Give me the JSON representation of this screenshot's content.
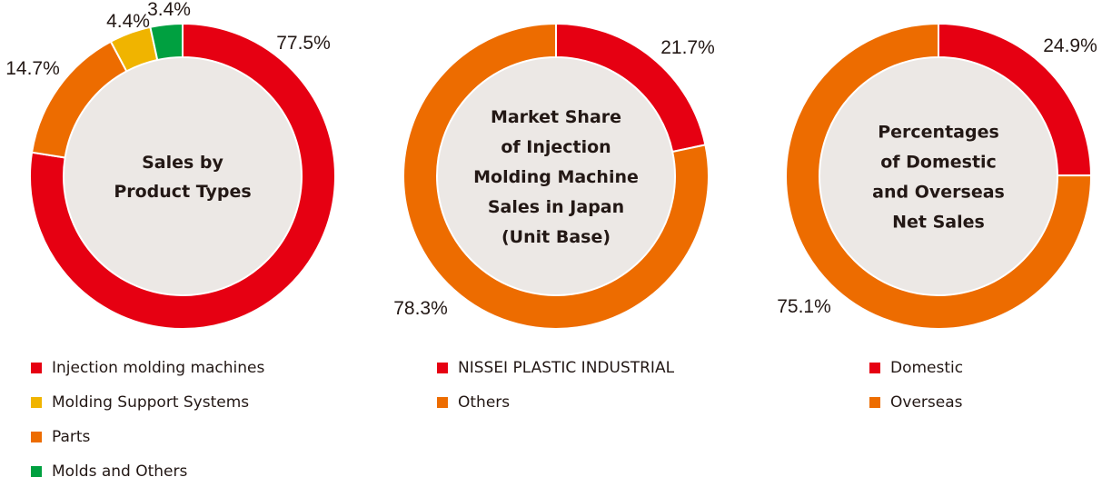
{
  "chart_data": [
    {
      "type": "pie",
      "title": "Sales by Product Types",
      "center_lines": [
        "Sales by",
        "Product Types"
      ],
      "labels": [
        "Injection molding machines",
        "Molding Support Systems",
        "Parts",
        "Molds and Others"
      ],
      "values": [
        77.5,
        4.4,
        14.7,
        3.4
      ],
      "value_labels": [
        "77.5%",
        "4.4%",
        "14.7%",
        "3.4%"
      ],
      "colors": [
        "#e60012",
        "#f0b400",
        "#ed6c00",
        "#00a040"
      ],
      "draw_order": [
        0,
        2,
        1,
        3
      ],
      "legend_order": [
        0,
        1,
        2,
        3
      ]
    },
    {
      "type": "pie",
      "title": "Market Share of Injection Molding Machine Sales in Japan (Unit Base)",
      "center_lines": [
        "Market Share",
        "of Injection",
        "Molding Machine",
        "Sales in Japan",
        "(Unit Base)"
      ],
      "labels": [
        "NISSEI PLASTIC INDUSTRIAL",
        "Others"
      ],
      "values": [
        21.7,
        78.3
      ],
      "value_labels": [
        "21.7%",
        "78.3%"
      ],
      "colors": [
        "#e60012",
        "#ed6c00"
      ],
      "draw_order": [
        0,
        1
      ],
      "legend_order": [
        0,
        1
      ]
    },
    {
      "type": "pie",
      "title": "Percentages of Domestic and Overseas Net Sales",
      "center_lines": [
        "Percentages",
        "of Domestic",
        "and Overseas",
        "Net Sales"
      ],
      "labels": [
        "Domestic",
        "Overseas"
      ],
      "values": [
        24.9,
        75.1
      ],
      "value_labels": [
        "24.9%",
        "75.1%"
      ],
      "colors": [
        "#e60012",
        "#ed6c00"
      ],
      "draw_order": [
        0,
        1
      ],
      "legend_order": [
        0,
        1
      ]
    }
  ],
  "colors": {
    "center_fill": "#ece8e5",
    "separator": "#ffffff"
  }
}
